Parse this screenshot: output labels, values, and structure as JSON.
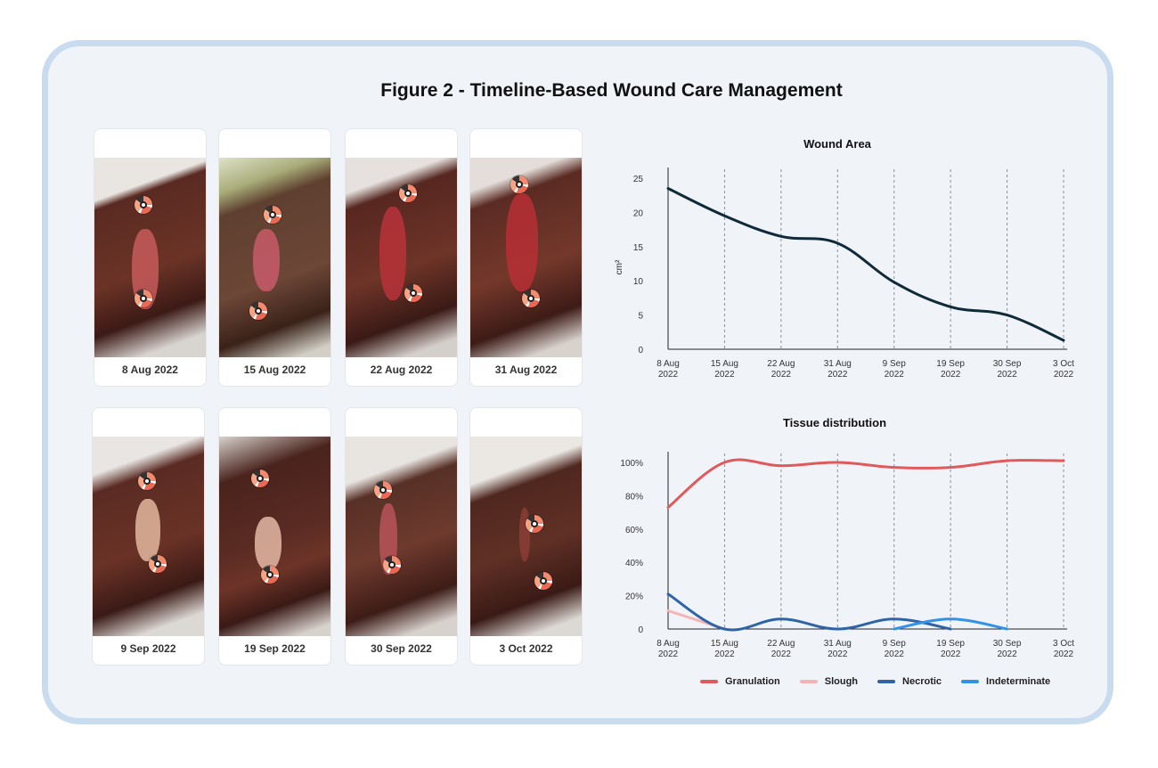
{
  "title": "Figure 2 - Timeline-Based Wound Care Management",
  "photos": {
    "captions": [
      "8 Aug 2022",
      "15 Aug 2022",
      "22 Aug 2022",
      "31 Aug 2022",
      "9 Sep 2022",
      "19 Sep 2022",
      "30 Sep 2022",
      "3 Oct 2022"
    ]
  },
  "colors": {
    "area_line": "#0f2a38",
    "granulation": "#e05a5c",
    "slough": "#f5b3b3",
    "necrotic": "#2e64a6",
    "indeterminate": "#3391e6",
    "frame": "#c9dbef",
    "grid": "#8a9099"
  },
  "chart_data": [
    {
      "type": "line",
      "title": "Wound Area",
      "ylabel": "cm²",
      "xlabel": "",
      "x": [
        "8 Aug 2022",
        "15 Aug 2022",
        "22 Aug 2022",
        "31 Aug 2022",
        "9 Sep 2022",
        "19 Sep 2022",
        "30 Sep 2022",
        "3 Oct 2022"
      ],
      "x_ticks": [
        [
          "8 Aug",
          "2022"
        ],
        [
          "15 Aug",
          "2022"
        ],
        [
          "22 Aug",
          "2022"
        ],
        [
          "31 Aug",
          "2022"
        ],
        [
          "9 Sep",
          "2022"
        ],
        [
          "19 Sep",
          "2022"
        ],
        [
          "30 Sep",
          "2022"
        ],
        [
          "3 Oct",
          "2022"
        ]
      ],
      "y_ticks": [
        "0",
        "5",
        "10",
        "15",
        "20",
        "25"
      ],
      "ylim": [
        0,
        25
      ],
      "grid": "vertical dashed",
      "series": [
        {
          "values": [
            23.5,
            19.5,
            16.5,
            15.5,
            9.8,
            6.2,
            5.0,
            1.3
          ]
        }
      ]
    },
    {
      "type": "line",
      "title": "Tissue distribution",
      "xlabel": "",
      "ylabel": "",
      "x": [
        "8 Aug 2022",
        "15 Aug 2022",
        "22 Aug 2022",
        "31 Aug 2022",
        "9 Sep 2022",
        "19 Sep 2022",
        "30 Sep 2022",
        "3 Oct 2022"
      ],
      "x_ticks": [
        [
          "8 Aug",
          "2022"
        ],
        [
          "15 Aug",
          "2022"
        ],
        [
          "22 Aug",
          "2022"
        ],
        [
          "31 Aug",
          "2022"
        ],
        [
          "9 Sep",
          "2022"
        ],
        [
          "19 Sep",
          "2022"
        ],
        [
          "30 Sep",
          "2022"
        ],
        [
          "3 Oct",
          "2022"
        ]
      ],
      "y_ticks": [
        "0",
        "20%",
        "40%",
        "60%",
        "80%",
        "100%"
      ],
      "ylim": [
        0,
        100
      ],
      "grid": "vertical dashed",
      "legend_position": "bottom",
      "series": [
        {
          "name": "Granulation",
          "values": [
            73,
            100,
            98,
            100,
            97,
            97,
            101,
            101
          ]
        },
        {
          "name": "Slough",
          "values": [
            11,
            0,
            null,
            null,
            null,
            null,
            null,
            null
          ]
        },
        {
          "name": "Necrotic",
          "values": [
            21,
            0,
            6,
            0,
            6,
            0,
            null,
            null
          ]
        },
        {
          "name": "Indeterminate",
          "values": [
            null,
            null,
            null,
            null,
            0,
            6,
            0,
            null
          ]
        }
      ]
    }
  ]
}
